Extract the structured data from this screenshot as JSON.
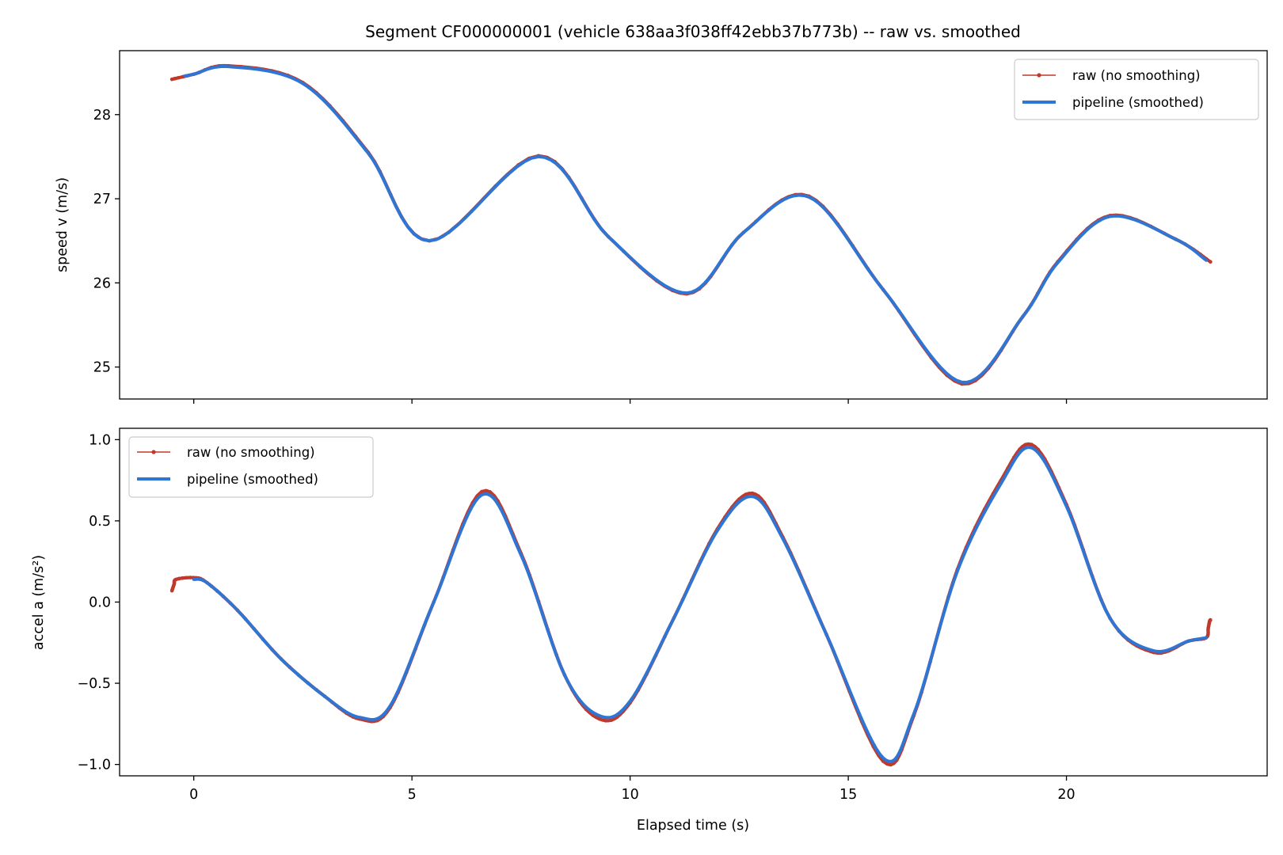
{
  "chart_data": {
    "title": "Segment CF000000001 (vehicle 638aa3f038ff42ebb37b773b) -- raw vs. smoothed",
    "xlabel": "Elapsed time (s)",
    "xlim": [
      -1.7,
      24.6
    ],
    "x_ticks": [
      0,
      5,
      10,
      15,
      20
    ],
    "x_tick_labels": [
      "0",
      "5",
      "10",
      "15",
      "20"
    ],
    "panels": [
      {
        "type": "line",
        "ylabel": "speed v (m/s)",
        "ylim": [
          24.62,
          28.76
        ],
        "y_ticks": [
          25,
          26,
          27,
          28
        ],
        "y_tick_labels": [
          "25",
          "26",
          "27",
          "28"
        ],
        "show_x_tick_labels": false,
        "legend": {
          "placement": "upper right",
          "entries": [
            "raw (no smoothing)",
            "pipeline (smoothed)"
          ]
        },
        "series": [
          {
            "name": "raw (no smoothing)",
            "color": "#c0392b",
            "style": "thin line with dot markers",
            "x": [
              -0.5,
              0.0,
              0.8,
              2.5,
              4.0,
              5.4,
              7.9,
              9.5,
              11.3,
              12.6,
              14.1,
              15.8,
              17.6,
              19.0,
              19.8,
              21.0,
              22.5,
              23.3
            ],
            "values": [
              28.42,
              28.48,
              28.58,
              28.38,
              27.55,
              26.5,
              27.51,
              26.55,
              25.87,
              26.6,
              27.03,
              25.92,
              24.8,
              25.6,
              26.25,
              26.8,
              26.52,
              26.25
            ]
          },
          {
            "name": "pipeline (smoothed)",
            "color": "#2e75d4",
            "style": "thick line",
            "x": [
              -0.2,
              0.0,
              0.8,
              2.5,
              4.0,
              5.4,
              7.9,
              9.5,
              11.3,
              12.6,
              14.1,
              15.8,
              17.6,
              19.0,
              19.8,
              21.0,
              22.5,
              23.2
            ],
            "values": [
              28.46,
              28.48,
              28.57,
              28.37,
              27.54,
              26.5,
              27.5,
              26.55,
              25.88,
              26.6,
              27.02,
              25.92,
              24.82,
              25.6,
              26.24,
              26.79,
              26.52,
              26.27
            ]
          }
        ]
      },
      {
        "type": "line",
        "ylabel": "accel a (m/s²)",
        "ylim": [
          -1.07,
          1.07
        ],
        "y_ticks": [
          1.0,
          0.5,
          0.0,
          -0.5,
          -1.0
        ],
        "y_tick_labels": [
          "1.0",
          "0.5",
          "0.0",
          "−0.5",
          "−1.0"
        ],
        "show_x_tick_labels": true,
        "legend": {
          "placement": "upper left",
          "entries": [
            "raw (no smoothing)",
            "pipeline (smoothed)"
          ]
        },
        "series": [
          {
            "name": "raw (no smoothing)",
            "color": "#c0392b",
            "style": "thin line with dot markers",
            "x": [
              -0.5,
              -0.45,
              -0.4,
              0.0,
              0.3,
              1.0,
              2.0,
              3.0,
              3.8,
              4.5,
              5.5,
              6.6,
              7.5,
              8.5,
              9.3,
              10.0,
              11.0,
              12.0,
              12.8,
              13.5,
              14.5,
              15.8,
              16.5,
              17.5,
              18.5,
              19.2,
              20.0,
              21.0,
              22.0,
              22.8,
              23.2,
              23.25,
              23.28,
              23.3
            ],
            "values": [
              0.07,
              0.11,
              0.14,
              0.15,
              0.12,
              -0.05,
              -0.35,
              -0.58,
              -0.72,
              -0.65,
              0.0,
              0.68,
              0.3,
              -0.45,
              -0.72,
              -0.62,
              -0.1,
              0.45,
              0.67,
              0.4,
              -0.2,
              -0.98,
              -0.7,
              0.2,
              0.75,
              0.97,
              0.6,
              -0.1,
              -0.31,
              -0.24,
              -0.22,
              -0.16,
              -0.12,
              -0.11
            ]
          },
          {
            "name": "pipeline (smoothed)",
            "color": "#2e75d4",
            "style": "thick line",
            "x": [
              0.0,
              0.3,
              1.0,
              2.0,
              3.0,
              3.8,
              4.5,
              5.5,
              6.6,
              7.5,
              8.5,
              9.3,
              10.0,
              11.0,
              12.0,
              12.8,
              13.5,
              14.5,
              15.8,
              16.5,
              17.5,
              18.5,
              19.2,
              20.0,
              21.0,
              22.0,
              22.8,
              23.2
            ],
            "values": [
              0.14,
              0.12,
              -0.05,
              -0.35,
              -0.58,
              -0.71,
              -0.64,
              0.0,
              0.66,
              0.29,
              -0.45,
              -0.7,
              -0.61,
              -0.1,
              0.44,
              0.65,
              0.39,
              -0.2,
              -0.96,
              -0.69,
              0.19,
              0.73,
              0.95,
              0.59,
              -0.1,
              -0.3,
              -0.24,
              -0.22
            ]
          }
        ]
      }
    ]
  }
}
